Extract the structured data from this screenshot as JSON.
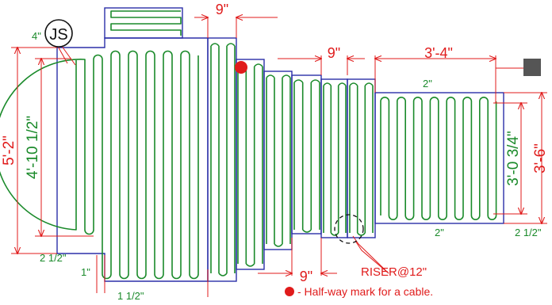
{
  "badge": {
    "label": "JS"
  },
  "dimensions": {
    "top_9": "9\"",
    "mid_9": "9\"",
    "mid_3_4": "3'-4\"",
    "bottom_9": "9\"",
    "left_5_2": "5'-2\"",
    "left_4_10": "4'-10 1/2\"",
    "right_3_6": "3'-6\"",
    "right_3_0": "3'-0 3/4\""
  },
  "spacing_labels": {
    "four_in": "4\"",
    "two_half_left": "2 1/2\"",
    "one_in": "1\"",
    "one_half": "1 1/2\"",
    "two_in_top": "2\"",
    "two_in_bottom": "2\"",
    "two_half_right": "2 1/2\""
  },
  "riser": {
    "label": "RISER@12\""
  },
  "legend": {
    "text": "- Half-way mark for a cable.",
    "marker_color": "#e01b1b"
  },
  "colors": {
    "outline": "#2b2fa8",
    "cable": "#1a8a2a",
    "dimension": "#e01b1b"
  }
}
